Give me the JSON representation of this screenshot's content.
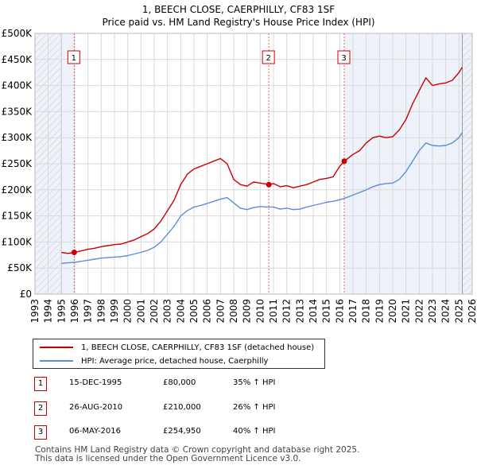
{
  "header": {
    "title": "1, BEECH CLOSE, CAERPHILLY, CF83 1SF",
    "subtitle": "Price paid vs. HM Land Registry's House Price Index (HPI)"
  },
  "chart_data": {
    "type": "line",
    "title": "1, BEECH CLOSE, CAERPHILLY, CF83 1SF",
    "subtitle": "Price paid vs. HM Land Registry's House Price Index (HPI)",
    "xlabel": "",
    "ylabel": "",
    "xlim": [
      1993,
      2026
    ],
    "ylim": [
      0,
      500000
    ],
    "x_ticks": [
      1993,
      1994,
      1995,
      1996,
      1997,
      1998,
      1999,
      2000,
      2001,
      2002,
      2003,
      2004,
      2005,
      2006,
      2007,
      2008,
      2009,
      2010,
      2011,
      2012,
      2013,
      2014,
      2015,
      2016,
      2017,
      2018,
      2019,
      2020,
      2021,
      2022,
      2023,
      2024,
      2025,
      2026
    ],
    "y_ticks": [
      {
        "value": 0,
        "label": "£0"
      },
      {
        "value": 50000,
        "label": "£50K"
      },
      {
        "value": 100000,
        "label": "£100K"
      },
      {
        "value": 150000,
        "label": "£150K"
      },
      {
        "value": 200000,
        "label": "£200K"
      },
      {
        "value": 250000,
        "label": "£250K"
      },
      {
        "value": 300000,
        "label": "£300K"
      },
      {
        "value": 350000,
        "label": "£350K"
      },
      {
        "value": 400000,
        "label": "£400K"
      },
      {
        "value": 450000,
        "label": "£450K"
      },
      {
        "value": 500000,
        "label": "£500K"
      }
    ],
    "grid": true,
    "data_range": [
      1995.0,
      2025.25
    ],
    "series": [
      {
        "name": "1, BEECH CLOSE, CAERPHILLY, CF83 1SF (detached house)",
        "color": "#cc0000",
        "x": [
          1995.0,
          1995.5,
          1995.96,
          1996.5,
          1997,
          1997.5,
          1998,
          1998.5,
          1999,
          1999.5,
          2000,
          2000.5,
          2001,
          2001.5,
          2002,
          2002.5,
          2003,
          2003.5,
          2004,
          2004.5,
          2005,
          2005.5,
          2006,
          2006.5,
          2007,
          2007.5,
          2008,
          2008.5,
          2009,
          2009.5,
          2010,
          2010.65,
          2011,
          2011.5,
          2012,
          2012.5,
          2013,
          2013.5,
          2014,
          2014.5,
          2015,
          2015.5,
          2016,
          2016.34,
          2016.6,
          2017,
          2017.5,
          2018,
          2018.5,
          2019,
          2019.5,
          2020,
          2020.5,
          2021,
          2021.5,
          2022,
          2022.5,
          2023,
          2023.5,
          2024,
          2024.5,
          2025,
          2025.25
        ],
        "y": [
          80000,
          78000,
          80000,
          83000,
          86000,
          88000,
          91000,
          93000,
          95000,
          96000,
          100000,
          104000,
          110000,
          116000,
          125000,
          140000,
          160000,
          180000,
          210000,
          230000,
          240000,
          245000,
          250000,
          255000,
          260000,
          250000,
          220000,
          210000,
          207000,
          215000,
          213000,
          210000,
          212000,
          206000,
          208000,
          204000,
          207000,
          210000,
          215000,
          220000,
          222000,
          225000,
          245000,
          254950,
          260000,
          268000,
          275000,
          290000,
          300000,
          303000,
          300000,
          302000,
          315000,
          335000,
          365000,
          390000,
          415000,
          400000,
          403000,
          405000,
          410000,
          425000,
          435000
        ]
      },
      {
        "name": "HPI: Average price, detached house, Caerphilly",
        "color": "#5b8ed6",
        "x": [
          1995.0,
          1995.5,
          1996,
          1996.5,
          1997,
          1997.5,
          1998,
          1998.5,
          1999,
          1999.5,
          2000,
          2000.5,
          2001,
          2001.5,
          2002,
          2002.5,
          2003,
          2003.5,
          2004,
          2004.5,
          2005,
          2005.5,
          2006,
          2006.5,
          2007,
          2007.5,
          2008,
          2008.5,
          2009,
          2009.5,
          2010,
          2010.5,
          2011,
          2011.5,
          2012,
          2012.5,
          2013,
          2013.5,
          2014,
          2014.5,
          2015,
          2015.5,
          2016,
          2016.5,
          2017,
          2017.5,
          2018,
          2018.5,
          2019,
          2019.5,
          2020,
          2020.5,
          2021,
          2021.5,
          2022,
          2022.5,
          2023,
          2023.5,
          2024,
          2024.5,
          2025,
          2025.25
        ],
        "y": [
          59000,
          60000,
          61000,
          63000,
          65000,
          67000,
          69000,
          70000,
          71000,
          72000,
          74000,
          77000,
          80000,
          84000,
          90000,
          100000,
          115000,
          130000,
          150000,
          160000,
          167000,
          170000,
          174000,
          178000,
          182000,
          185000,
          175000,
          165000,
          162000,
          166000,
          168000,
          167000,
          167000,
          163000,
          165000,
          162000,
          163000,
          167000,
          170000,
          173000,
          176000,
          178000,
          181000,
          185000,
          190000,
          195000,
          200000,
          206000,
          210000,
          212000,
          213000,
          220000,
          235000,
          255000,
          275000,
          290000,
          285000,
          284000,
          285000,
          290000,
          300000,
          310000
        ]
      }
    ],
    "sales": [
      {
        "label": "1",
        "x": 1995.96,
        "date": "15-DEC-1995",
        "price": "£80,000",
        "price_value": 80000,
        "hpi": "35% ↑ HPI"
      },
      {
        "label": "2",
        "x": 2010.65,
        "date": "26-AUG-2010",
        "price": "£210,000",
        "price_value": 210000,
        "hpi": "26% ↑ HPI"
      },
      {
        "label": "3",
        "x": 2016.34,
        "date": "06-MAY-2016",
        "price": "£254,950",
        "price_value": 254950,
        "hpi": "40% ↑ HPI"
      }
    ]
  },
  "legend": {
    "property_label": "1, BEECH CLOSE, CAERPHILLY, CF83 1SF (detached house)",
    "hpi_label": "HPI: Average price, detached house, Caerphilly",
    "property_color": "#cc0000",
    "hpi_color": "#5b8ed6"
  },
  "footer": {
    "line1": "Contains HM Land Registry data © Crown copyright and database right 2025.",
    "line2": "This data is licensed under the Open Government Licence v3.0."
  }
}
